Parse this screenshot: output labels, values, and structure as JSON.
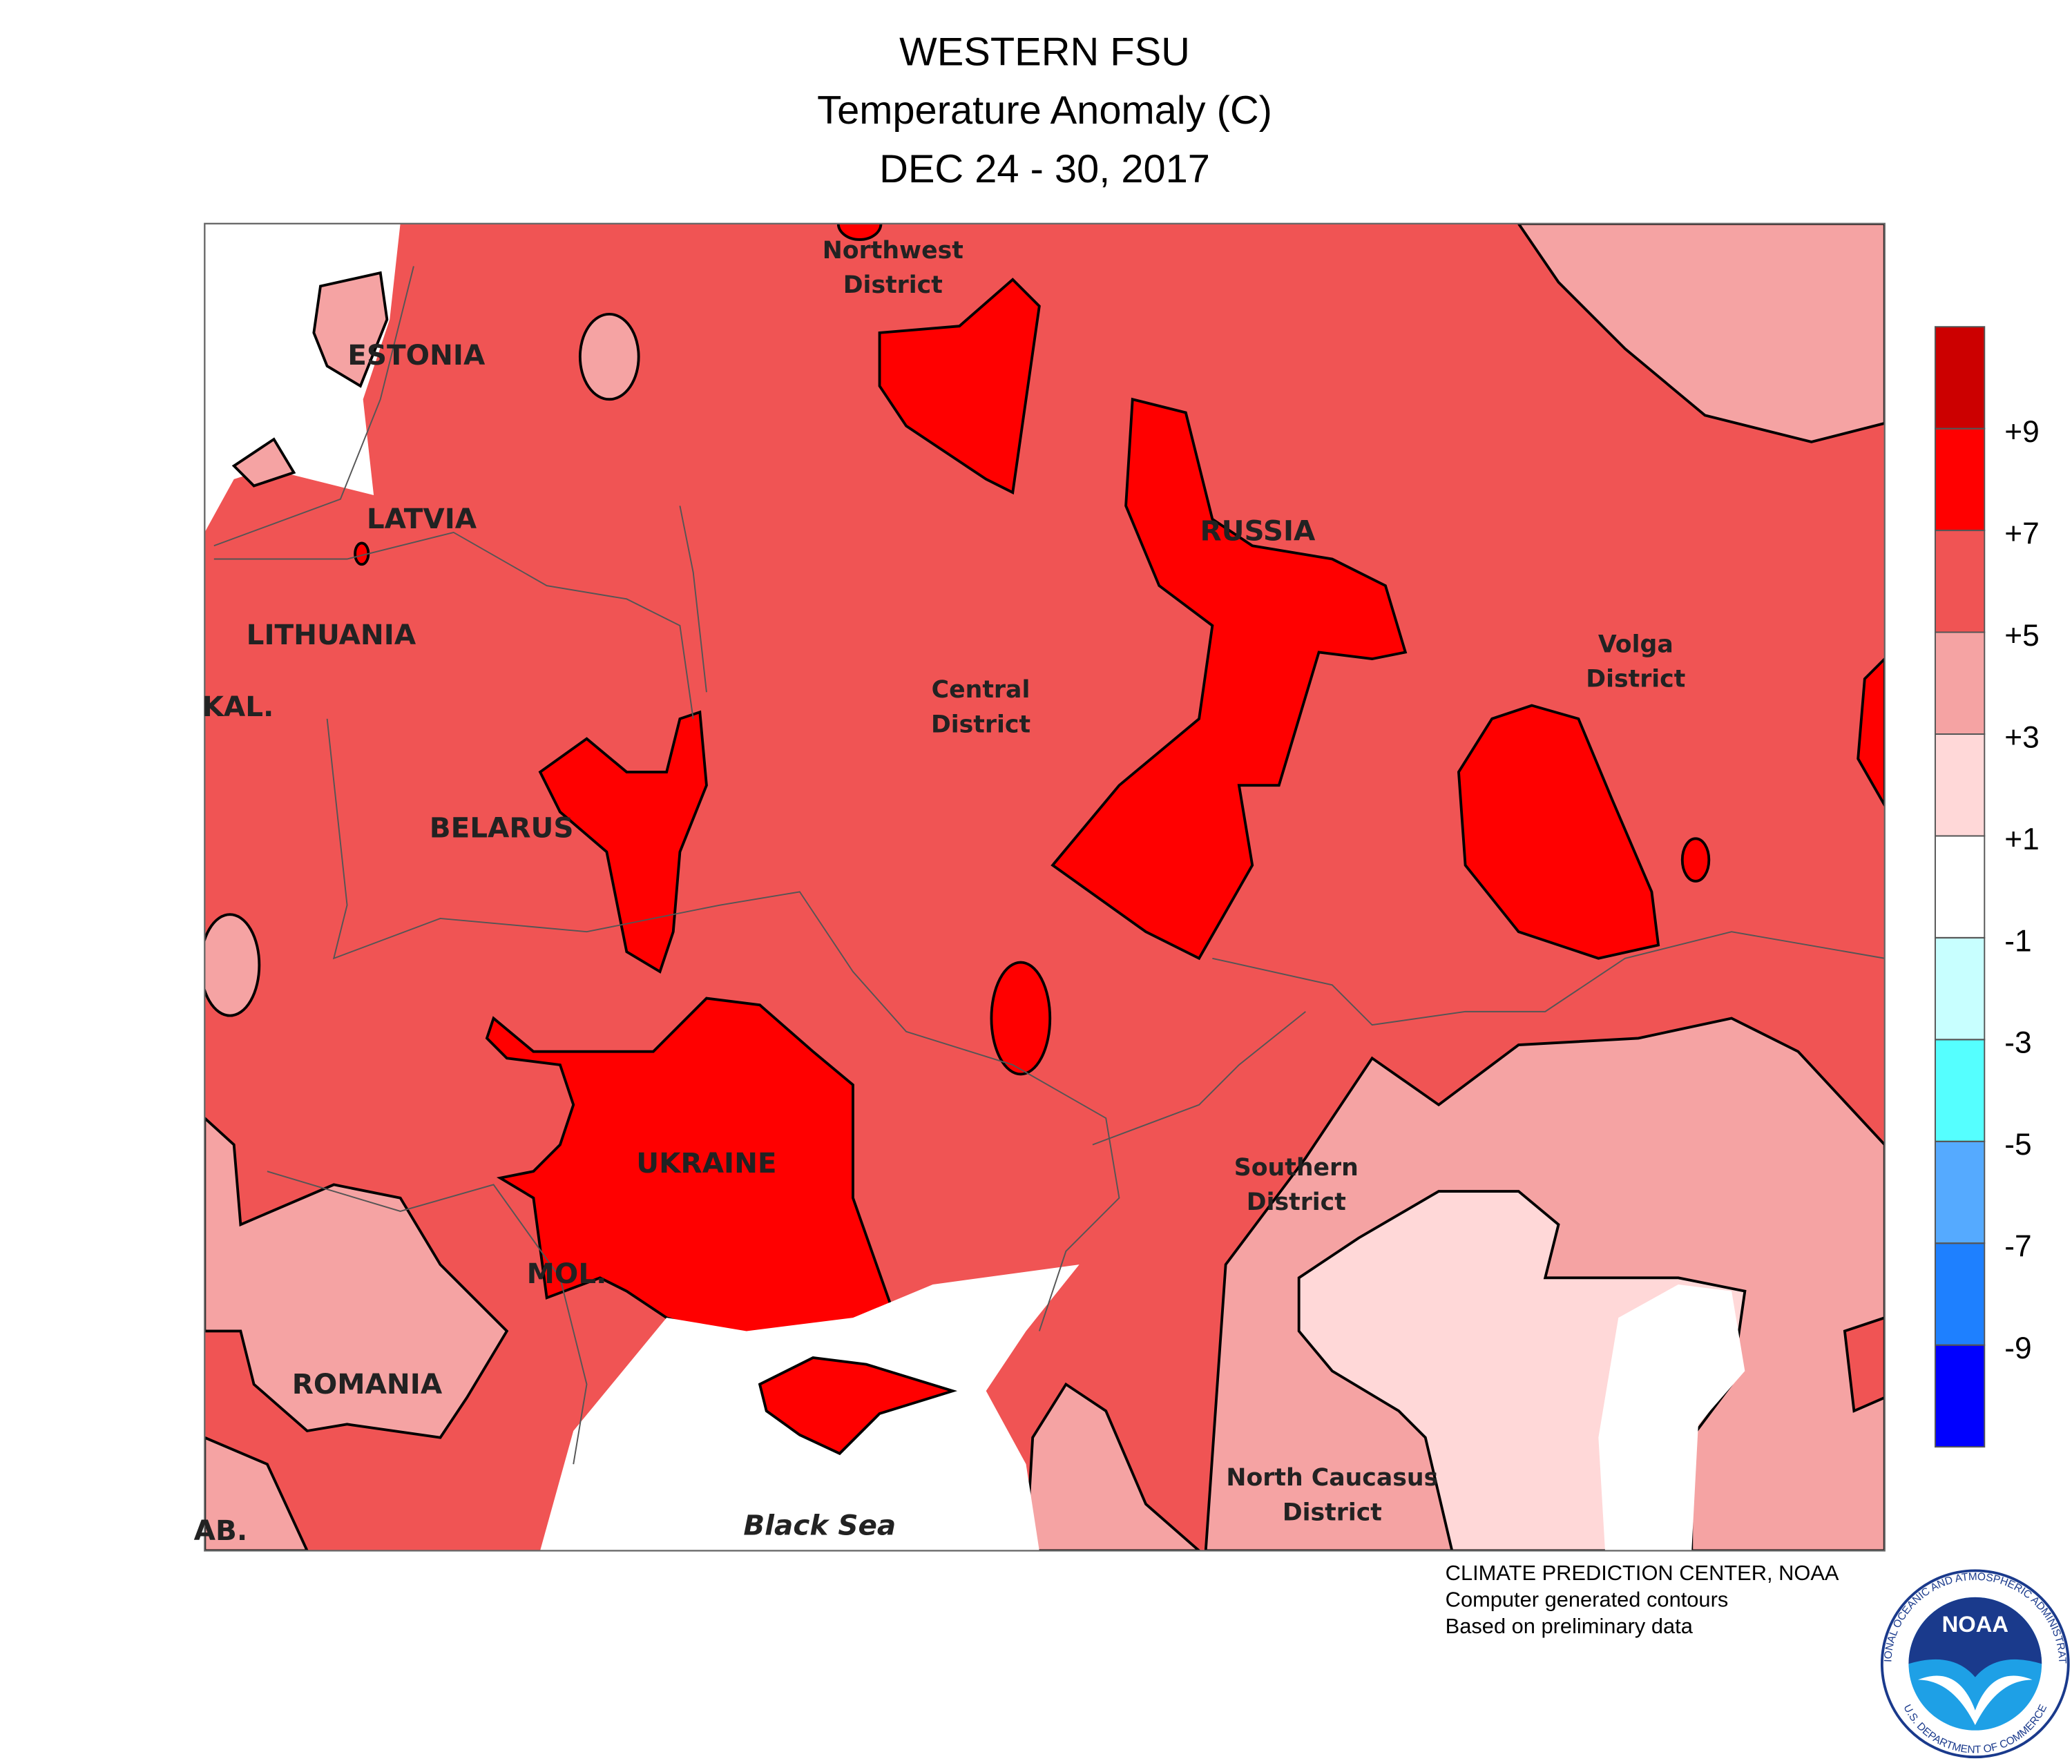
{
  "header": {
    "title": "WESTERN FSU",
    "subtitle": "Temperature Anomaly (C)",
    "dates": "DEC 24 - 30, 2017"
  },
  "map": {
    "labels": [
      {
        "lines": [
          "Northwest",
          "District"
        ]
      },
      {
        "lines": [
          "ESTONIA"
        ]
      },
      {
        "lines": [
          "LATVIA"
        ]
      },
      {
        "lines": [
          "LITHUANIA"
        ]
      },
      {
        "lines": [
          "KAL."
        ]
      },
      {
        "lines": [
          "BELARUS"
        ]
      },
      {
        "lines": [
          "RUSSIA"
        ]
      },
      {
        "lines": [
          "Central",
          "District"
        ]
      },
      {
        "lines": [
          "Volga",
          "District"
        ]
      },
      {
        "lines": [
          "UKRAINE"
        ]
      },
      {
        "lines": [
          "MOL."
        ]
      },
      {
        "lines": [
          "ROMANIA"
        ]
      },
      {
        "lines": [
          "Southern",
          "District"
        ]
      },
      {
        "lines": [
          "North Caucasus",
          "District"
        ]
      },
      {
        "lines": [
          "Black Sea"
        ]
      },
      {
        "lines": [
          "AB."
        ]
      }
    ]
  },
  "legend": {
    "colors": [
      "#0000ff",
      "#1e80ff",
      "#55aaff",
      "#55ffff",
      "#c8ffff",
      "#ffffff",
      "#ffd8d8",
      "#f5a3a3",
      "#f05454",
      "#ff0000",
      "#cc0000"
    ],
    "ticks": [
      -9,
      -7,
      -5,
      -3,
      -1,
      {
        "value": 1,
        "label": "+1"
      },
      {
        "value": 3,
        "label": "+3"
      },
      {
        "value": 5,
        "label": "+5"
      },
      {
        "value": 7,
        "label": "+7"
      },
      {
        "value": 9,
        "label": "+9"
      }
    ]
  },
  "footer": {
    "lines": [
      "CLIMATE PREDICTION CENTER, NOAA",
      "Computer generated contours",
      "Based on preliminary data"
    ]
  },
  "logo": {
    "text": "NOAA",
    "ring_top": "NATIONAL OCEANIC AND ATMOSPHERIC ADMINISTRATION",
    "ring_bottom": "U.S. DEPARTMENT OF COMMERCE"
  }
}
